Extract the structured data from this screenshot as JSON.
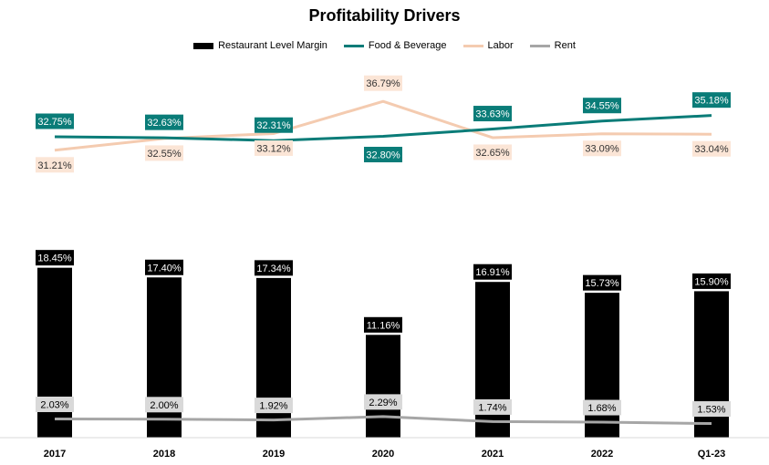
{
  "chart_data": {
    "type": "bar",
    "title": "Profitability Drivers",
    "categories": [
      "2017",
      "2018",
      "2019",
      "2020",
      "2021",
      "2022",
      "Q1-23"
    ],
    "series": [
      {
        "name": "Restaurant Level Margin",
        "kind": "bar",
        "color": "#000000",
        "values": [
          18.45,
          17.4,
          17.34,
          11.16,
          16.91,
          15.73,
          15.9
        ],
        "labels": [
          "18.45%",
          "17.40%",
          "17.34%",
          "11.16%",
          "16.91%",
          "15.73%",
          "15.90%"
        ]
      },
      {
        "name": "Food & Beverage",
        "kind": "line",
        "color": "#0a7c78",
        "values": [
          32.75,
          32.63,
          32.31,
          32.8,
          33.63,
          34.55,
          35.18
        ],
        "labels": [
          "32.75%",
          "32.63%",
          "32.31%",
          "32.80%",
          "33.63%",
          "34.55%",
          "35.18%"
        ]
      },
      {
        "name": "Labor",
        "kind": "line",
        "color": "#f4cbb0",
        "values": [
          31.21,
          32.55,
          33.12,
          36.79,
          32.65,
          33.09,
          33.04
        ],
        "labels": [
          "31.21%",
          "32.55%",
          "33.12%",
          "36.79%",
          "32.65%",
          "33.09%",
          "33.04%"
        ]
      },
      {
        "name": "Rent",
        "kind": "line",
        "color": "#a6a6a6",
        "values": [
          2.03,
          2.0,
          1.92,
          2.29,
          1.74,
          1.68,
          1.53
        ],
        "labels": [
          "2.03%",
          "2.00%",
          "1.92%",
          "2.29%",
          "1.74%",
          "1.68%",
          "1.53%"
        ]
      }
    ],
    "legend_position": "top",
    "grid": false
  }
}
